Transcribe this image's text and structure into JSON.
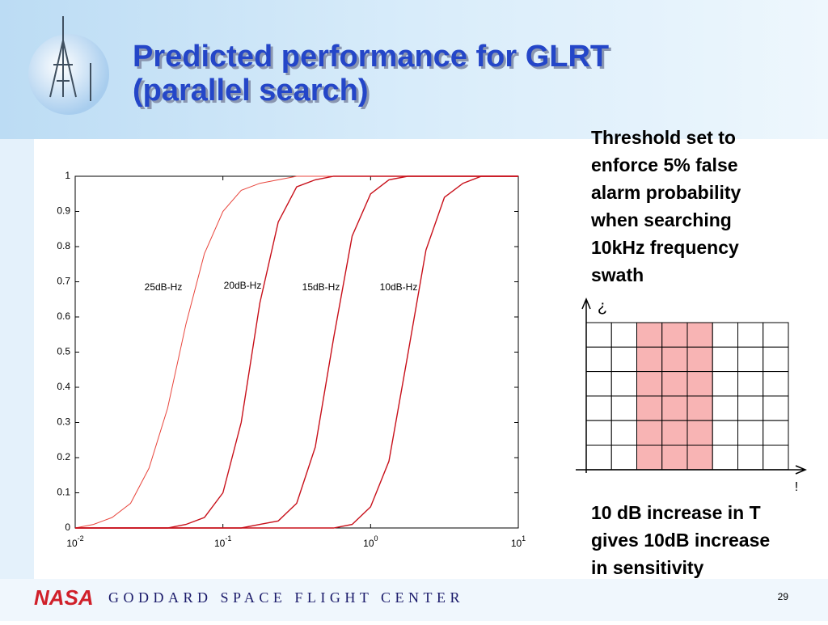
{
  "header": {
    "title_lines": [
      "Predicted performance for GLRT",
      "(parallel search)"
    ]
  },
  "chart_data": {
    "type": "line",
    "xscale": "log",
    "x": [
      0.01,
      0.0133,
      0.0178,
      0.0237,
      0.0316,
      0.0422,
      0.0562,
      0.075,
      0.1,
      0.133,
      0.178,
      0.237,
      0.316,
      0.422,
      0.562,
      0.75,
      1,
      1.33,
      1.78,
      2.37,
      3.16,
      4.22,
      5.62,
      7.5,
      10
    ],
    "series": [
      {
        "name": "25dB-Hz",
        "color": "#e8453c",
        "values": [
          0,
          0.01,
          0.03,
          0.07,
          0.17,
          0.34,
          0.58,
          0.78,
          0.9,
          0.96,
          0.98,
          0.99,
          1,
          1,
          1,
          1,
          1,
          1,
          1,
          1,
          1,
          1,
          1,
          1,
          1
        ]
      },
      {
        "name": "20dB-Hz",
        "color": "#c8101a",
        "values": [
          0,
          0,
          0,
          0,
          0,
          0,
          0.01,
          0.03,
          0.1,
          0.3,
          0.64,
          0.87,
          0.97,
          0.99,
          1,
          1,
          1,
          1,
          1,
          1,
          1,
          1,
          1,
          1,
          1
        ]
      },
      {
        "name": "15dB-Hz",
        "color": "#c8101a",
        "values": [
          0,
          0,
          0,
          0,
          0,
          0,
          0,
          0,
          0,
          0,
          0.01,
          0.02,
          0.07,
          0.23,
          0.54,
          0.83,
          0.95,
          0.99,
          1,
          1,
          1,
          1,
          1,
          1,
          1
        ]
      },
      {
        "name": "10dB-Hz",
        "color": "#c8101a",
        "values": [
          0,
          0,
          0,
          0,
          0,
          0,
          0,
          0,
          0,
          0,
          0,
          0,
          0,
          0,
          0,
          0.01,
          0.06,
          0.19,
          0.49,
          0.79,
          0.94,
          0.98,
          1,
          1,
          1
        ]
      }
    ],
    "xlim": [
      0.01,
      10
    ],
    "ylim": [
      0,
      1
    ],
    "xticks": [
      {
        "value": 0.01,
        "label": "10",
        "exponent": "-2"
      },
      {
        "value": 0.1,
        "label": "10",
        "exponent": "-1"
      },
      {
        "value": 1,
        "label": "10",
        "exponent": "0"
      },
      {
        "value": 10,
        "label": "10",
        "exponent": "1"
      }
    ],
    "yticks": [
      0,
      0.1,
      0.2,
      0.3,
      0.4,
      0.5,
      0.6,
      0.7,
      0.8,
      0.9,
      1
    ]
  },
  "side_text": {
    "top_lines": [
      "Threshold set to",
      "enforce 5% false",
      "alarm probability",
      "when searching",
      "10kHz frequency",
      "swath"
    ],
    "y_arrow_label": "¿",
    "x_arrow_label": "!",
    "bottom_lines": [
      "10 dB increase in T",
      "gives 10dB increase",
      "in sensitivity"
    ]
  },
  "footer": {
    "logo": "NASA",
    "center": "GODDARD SPACE FLIGHT CENTER",
    "page": "29"
  }
}
